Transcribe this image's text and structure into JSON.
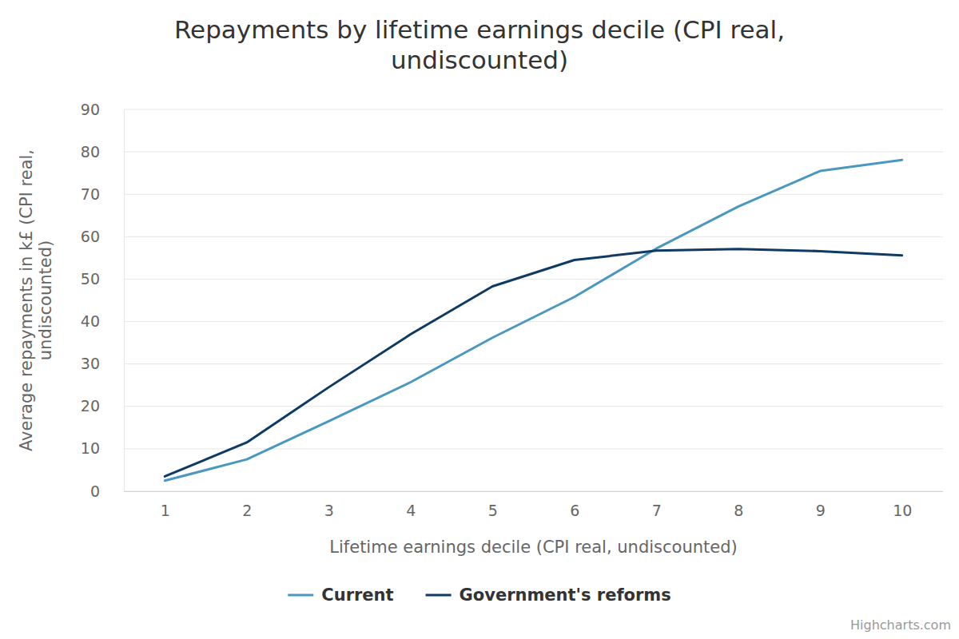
{
  "chart_data": {
    "type": "line",
    "title": "Repayments by lifetime earnings decile (CPI real, undiscounted)",
    "x_label": "Lifetime earnings decile (CPI real, undiscounted)",
    "y_label": "Average repayments in k£ (CPI real, undiscounted)",
    "categories": [
      "1",
      "2",
      "3",
      "4",
      "5",
      "6",
      "7",
      "8",
      "9",
      "10"
    ],
    "series": [
      {
        "name": "Current",
        "color": "#4a98c0",
        "values": [
          2.5,
          7.5,
          16.5,
          25.7,
          36.2,
          45.8,
          57.2,
          67.1,
          75.5,
          78.1
        ]
      },
      {
        "name": "Government's reforms",
        "color": "#0e3a63",
        "values": [
          3.5,
          11.5,
          24.5,
          37.0,
          48.3,
          54.5,
          56.7,
          57.1,
          56.6,
          55.6
        ]
      }
    ],
    "ylim": [
      0,
      90
    ],
    "yticks": [
      0,
      10,
      20,
      30,
      40,
      50,
      60,
      70,
      80,
      90
    ],
    "grid": true,
    "legend": "bottom",
    "credits": "Highcharts.com"
  }
}
